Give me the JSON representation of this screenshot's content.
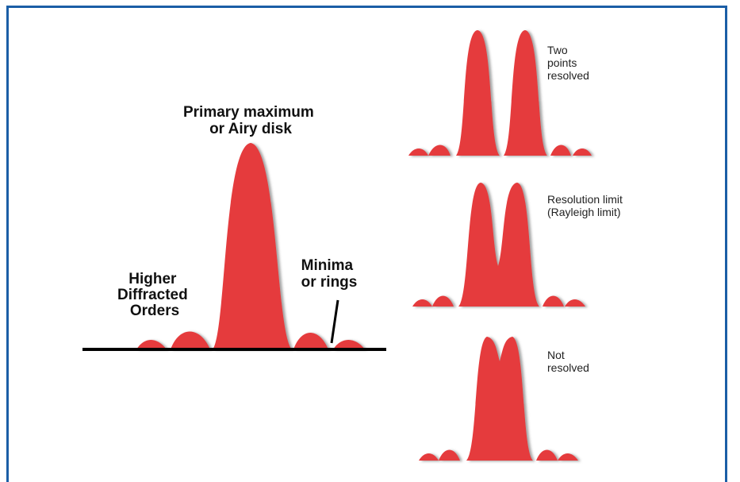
{
  "main_diagram": {
    "title": [
      "Primary maximum",
      "or Airy disk"
    ],
    "left_label": [
      "Higher",
      "Diffracted",
      "Orders"
    ],
    "right_label": [
      "Minima",
      "or rings"
    ]
  },
  "panels": [
    {
      "label": [
        "Two",
        "points",
        "resolved"
      ]
    },
    {
      "label": [
        "Resolution limit",
        "(Rayleigh limit)"
      ]
    },
    {
      "label": [
        "Not",
        "resolved"
      ]
    }
  ],
  "colors": {
    "peak": "#e53b3e",
    "peak_edge": "#b52a2c",
    "frame": "#1b5ea6",
    "baseline": "#000000"
  }
}
